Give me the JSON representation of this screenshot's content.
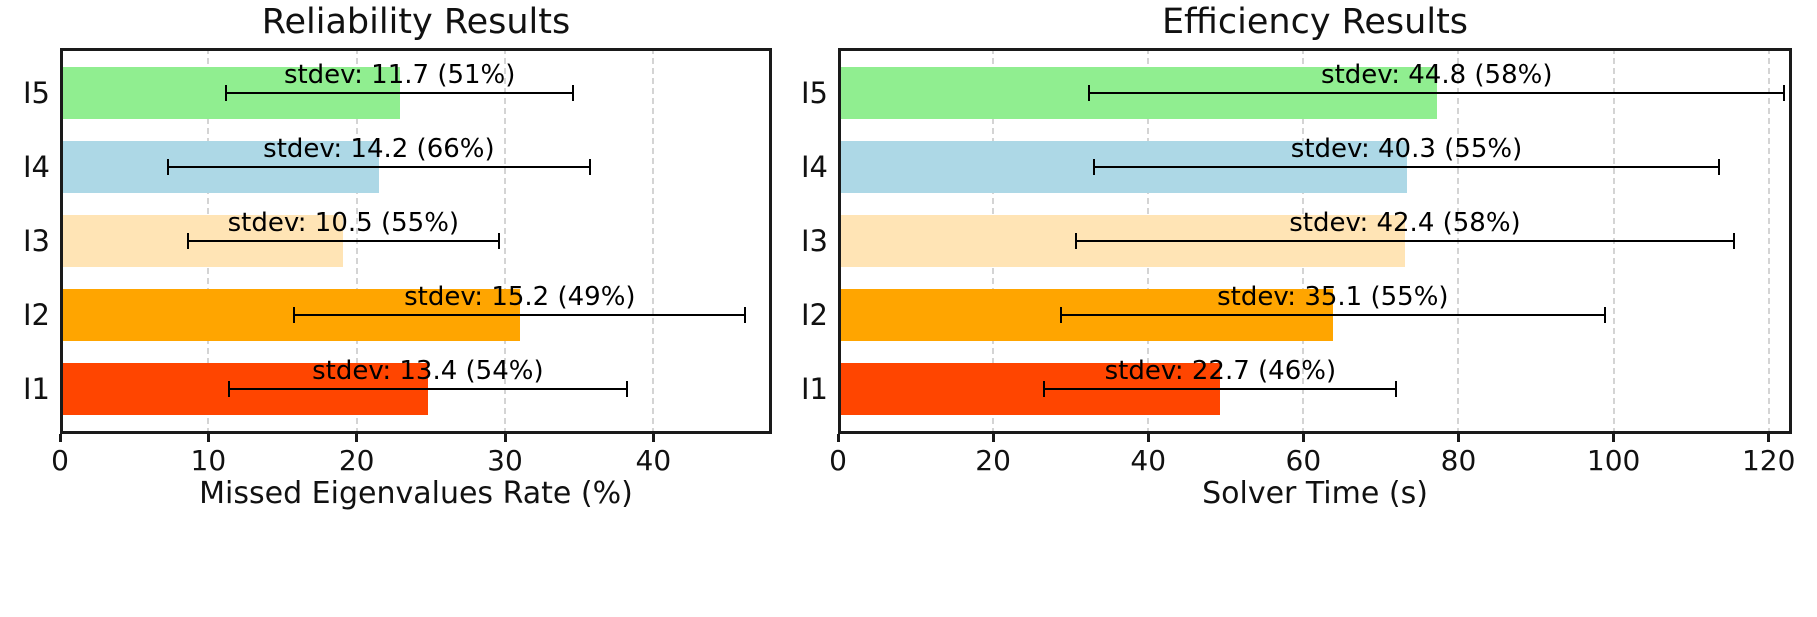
{
  "figure": {
    "background": "#ffffff",
    "spine_color": "#1a1a1a",
    "grid_color": "#d4d4d4",
    "errorbar_color": "#000000"
  },
  "chart_data": [
    {
      "type": "bar",
      "orientation": "horizontal",
      "title": "Reliability Results",
      "xlabel": "Missed Eigenvalues Rate (%)",
      "categories": [
        "I1",
        "I2",
        "I3",
        "I4",
        "I5"
      ],
      "values": [
        24.8,
        31.0,
        19.1,
        21.5,
        22.9
      ],
      "stdev": [
        13.4,
        15.2,
        10.5,
        14.2,
        11.7
      ],
      "stdev_pct": [
        54,
        49,
        55,
        66,
        51
      ],
      "annotations": [
        "stdev: 13.4 (54%)",
        "stdev: 15.2 (49%)",
        "stdev: 10.5 (55%)",
        "stdev: 14.2 (66%)",
        "stdev: 11.7 (51%)"
      ],
      "bar_colors": [
        "#FF4500",
        "#FFA500",
        "#FFE4B5",
        "#ADD8E6",
        "#90EE90"
      ],
      "xlim": [
        0,
        48
      ],
      "xticks": [
        0,
        10,
        20,
        30,
        40
      ],
      "grid": "dashed-vertical",
      "legend": null
    },
    {
      "type": "bar",
      "orientation": "horizontal",
      "title": "Efficiency Results",
      "xlabel": "Solver Time (s)",
      "categories": [
        "I1",
        "I2",
        "I3",
        "I4",
        "I5"
      ],
      "values": [
        49.3,
        63.8,
        73.1,
        73.3,
        77.2
      ],
      "stdev": [
        22.7,
        35.1,
        42.4,
        40.3,
        44.8
      ],
      "stdev_pct": [
        46,
        55,
        58,
        55,
        58
      ],
      "annotations": [
        "stdev: 22.7 (46%)",
        "stdev: 35.1 (55%)",
        "stdev: 42.4 (58%)",
        "stdev: 40.3 (55%)",
        "stdev: 44.8 (58%)"
      ],
      "bar_colors": [
        "#FF4500",
        "#FFA500",
        "#FFE4B5",
        "#ADD8E6",
        "#90EE90"
      ],
      "xlim": [
        0,
        123
      ],
      "xticks": [
        0,
        20,
        40,
        60,
        80,
        100,
        120
      ],
      "grid": "dashed-vertical",
      "legend": null
    }
  ]
}
